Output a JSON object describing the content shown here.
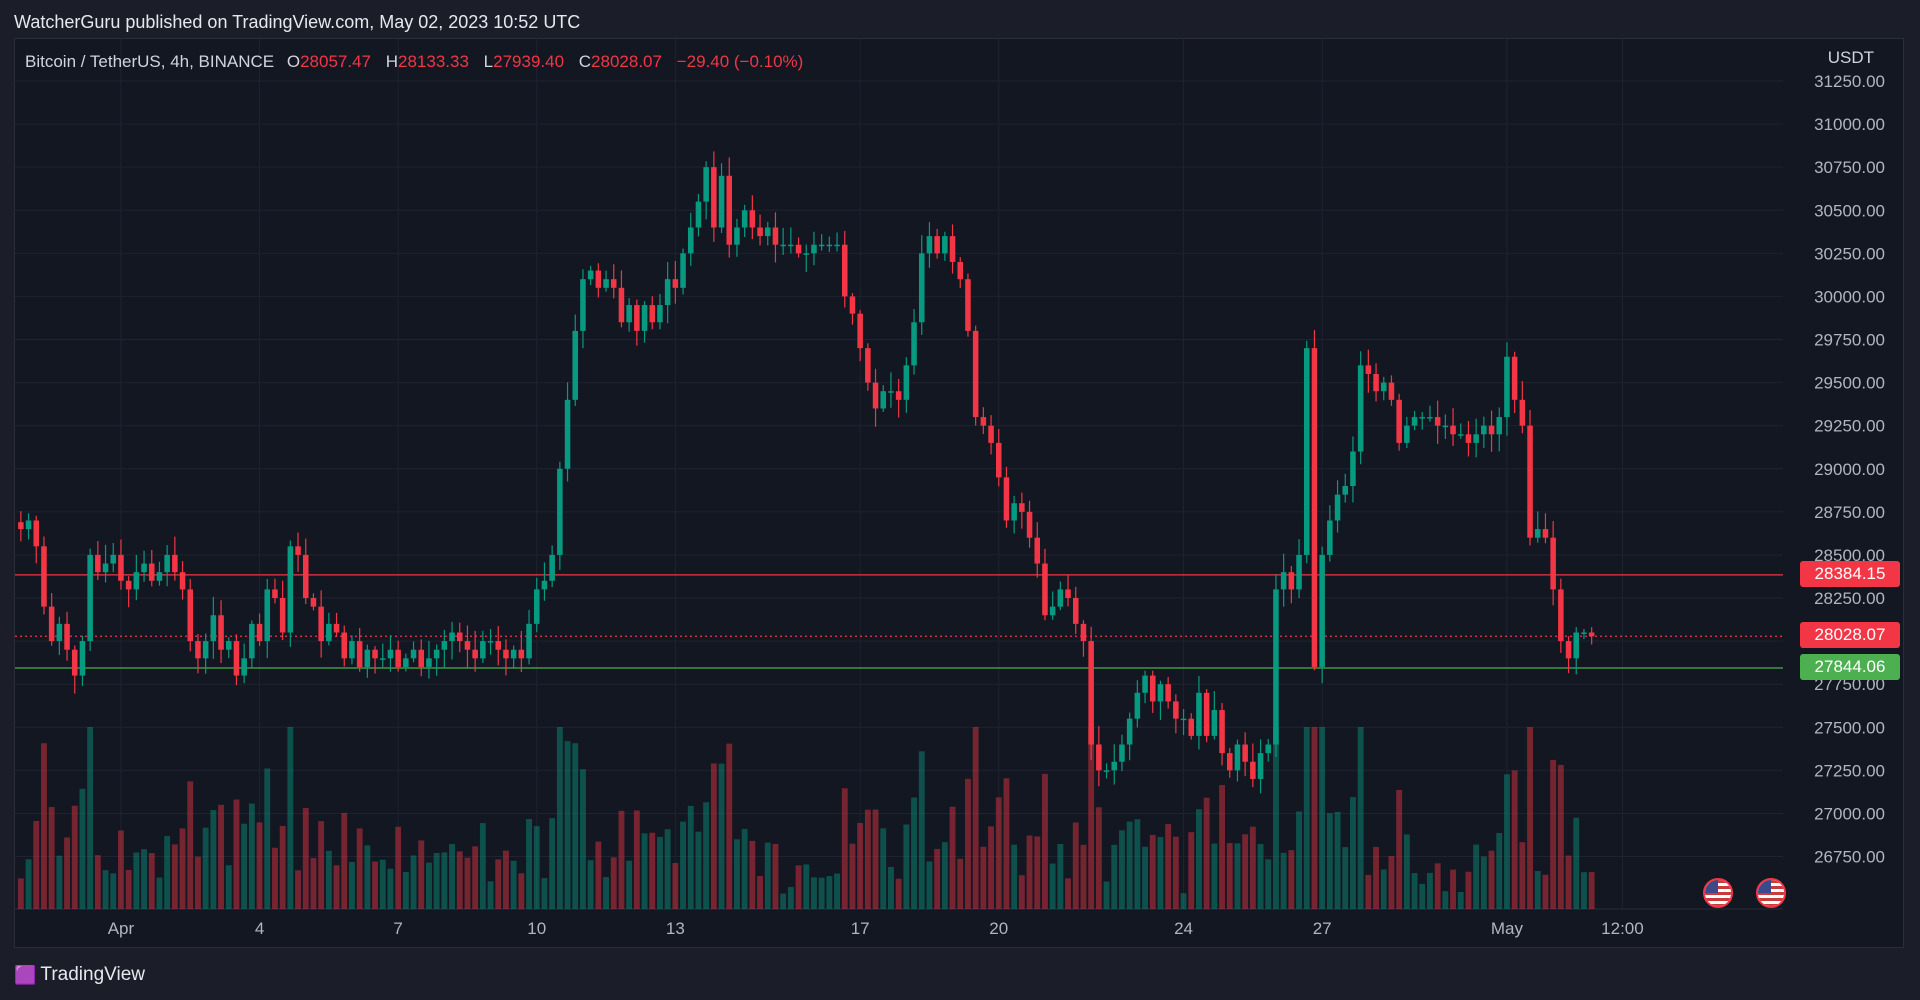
{
  "header": {
    "publisher": "WatcherGuru published on TradingView.com, May 02, 2023 10:52 UTC"
  },
  "legend": {
    "symbol": "Bitcoin / TetherUS, 4h, BINANCE",
    "o_label": "O",
    "o_value": "28057.47",
    "h_label": "H",
    "h_value": "28133.33",
    "l_label": "L",
    "l_value": "27939.40",
    "c_label": "C",
    "c_value": "28028.07",
    "change": "−29.40 (−0.10%)"
  },
  "axis": {
    "unit": "USDT"
  },
  "footer": {
    "brand": "TradingView"
  },
  "colors": {
    "up": "#089981",
    "down": "#f23645",
    "background": "#131722",
    "grid": "#1f2331",
    "resistance": "#f23645",
    "support": "#4caf50"
  },
  "icons": [
    "us-flag-event-icon",
    "us-flag-event-icon"
  ],
  "chart_data": {
    "type": "candlestick",
    "interval": "4h",
    "y_ticks": [
      "31250.00",
      "31000.00",
      "30750.00",
      "30500.00",
      "30250.00",
      "30000.00",
      "29750.00",
      "29500.00",
      "29250.00",
      "29000.00",
      "28750.00",
      "28500.00",
      "28250.00",
      "28000.00",
      "27750.00",
      "27500.00",
      "27250.00",
      "27000.00",
      "26750.00"
    ],
    "ylim": [
      26550,
      31250
    ],
    "x_ticks": [
      {
        "label": "Apr",
        "bar": 13
      },
      {
        "label": "4",
        "bar": 31
      },
      {
        "label": "7",
        "bar": 49
      },
      {
        "label": "10",
        "bar": 67
      },
      {
        "label": "13",
        "bar": 85
      },
      {
        "label": "17",
        "bar": 109
      },
      {
        "label": "20",
        "bar": 127
      },
      {
        "label": "24",
        "bar": 151
      },
      {
        "label": "27",
        "bar": 169
      },
      {
        "label": "May",
        "bar": 193
      },
      {
        "label": "12:00",
        "bar": 208
      }
    ],
    "horizontal_lines": [
      {
        "label": "28384.15",
        "value": 28384.15,
        "style": "solid",
        "color": "#f23645"
      },
      {
        "label": "28028.07",
        "value": 28028.07,
        "style": "dotted",
        "color": "#f23645"
      },
      {
        "label": "27844.06",
        "value": 27844.06,
        "style": "solid",
        "color": "#4caf50"
      }
    ],
    "closes": [
      28650,
      28700,
      28550,
      28200,
      28000,
      28100,
      27950,
      27800,
      28000,
      28500,
      28400,
      28450,
      28500,
      28350,
      28300,
      28400,
      28450,
      28350,
      28400,
      28500,
      28400,
      28300,
      28000,
      27900,
      28000,
      28150,
      27950,
      28000,
      27800,
      27900,
      28100,
      28000,
      28300,
      28250,
      28050,
      28550,
      28500,
      28250,
      28200,
      28000,
      28100,
      28050,
      27900,
      28000,
      27850,
      27950,
      27900,
      27900,
      27950,
      27850,
      27900,
      27950,
      27850,
      27900,
      27950,
      28000,
      28050,
      28000,
      27950,
      27900,
      28000,
      28000,
      27950,
      27900,
      27950,
      27900,
      28100,
      28300,
      28350,
      28500,
      29000,
      29400,
      29800,
      30100,
      30150,
      30050,
      30100,
      30050,
      29850,
      29950,
      29800,
      29950,
      29850,
      29950,
      30100,
      30050,
      30250,
      30400,
      30550,
      30750,
      30400,
      30700,
      30300,
      30400,
      30500,
      30400,
      30350,
      30400,
      30300,
      30300,
      30300,
      30250,
      30250,
      30300,
      30300,
      30300,
      30300,
      30000,
      29900,
      29700,
      29500,
      29350,
      29450,
      29450,
      29400,
      29600,
      29850,
      30250,
      30350,
      30250,
      30350,
      30200,
      30100,
      29800,
      29300,
      29250,
      29150,
      28950,
      28700,
      28800,
      28750,
      28600,
      28450,
      28150,
      28200,
      28300,
      28250,
      28100,
      28000,
      27400,
      27250,
      27250,
      27300,
      27400,
      27550,
      27700,
      27800,
      27650,
      27750,
      27650,
      27550,
      27550,
      27450,
      27700,
      27450,
      27600,
      27350,
      27250,
      27400,
      27300,
      27200,
      27350,
      27400,
      28300,
      28400,
      28300,
      28500,
      29700,
      27850,
      28500,
      28700,
      28850,
      28900,
      29100,
      29600,
      29550,
      29450,
      29500,
      29400,
      29150,
      29250,
      29300,
      29300,
      29300,
      29250,
      29250,
      29200,
      29200,
      29150,
      29200,
      29250,
      29200,
      29300,
      29650,
      29400,
      29250,
      28600,
      28650,
      28600,
      28300,
      28000,
      27900,
      28050,
      28050,
      28028
    ]
  }
}
